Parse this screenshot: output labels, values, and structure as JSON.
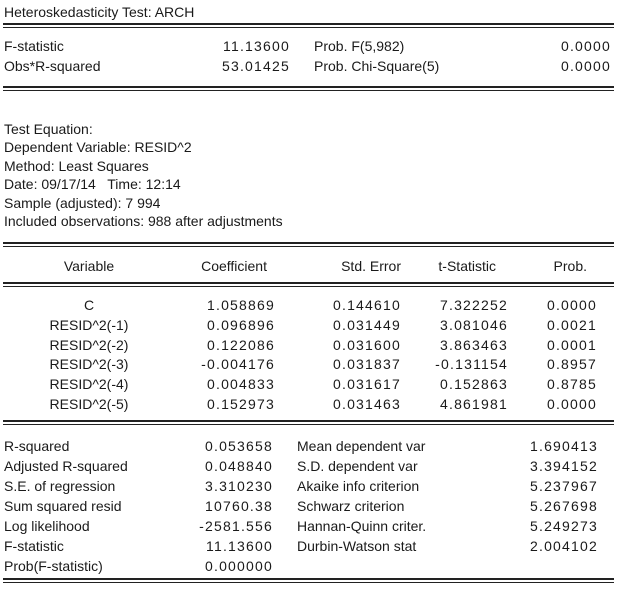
{
  "title": "Heteroskedasticity Test: ARCH",
  "colors": {
    "background": "#ffffff",
    "text": "#1a1a1a",
    "rule": "#222222"
  },
  "top_stats": {
    "rows": [
      {
        "label": "F-statistic",
        "value": "11.13600",
        "prob_label": "Prob. F(5,982)",
        "prob_value": "0.0000"
      },
      {
        "label": "Obs*R-squared",
        "value": "53.01425",
        "prob_label": "Prob. Chi-Square(5)",
        "prob_value": "0.0000"
      }
    ]
  },
  "equation_info": {
    "lines": [
      "Test Equation:",
      "Dependent Variable: RESID^2",
      "Method: Least Squares",
      "Date: 09/17/14   Time: 12:14",
      "Sample (adjusted): 7 994",
      "Included observations: 988 after adjustments"
    ]
  },
  "coefficients_table": {
    "headers": [
      "Variable",
      "Coefficient",
      "Std. Error",
      "t-Statistic",
      "Prob."
    ],
    "rows": [
      [
        "C",
        "1.058869",
        "0.144610",
        "7.322252",
        "0.0000"
      ],
      [
        "RESID^2(-1)",
        "0.096896",
        "0.031449",
        "3.081046",
        "0.0021"
      ],
      [
        "RESID^2(-2)",
        "0.122086",
        "0.031600",
        "3.863463",
        "0.0001"
      ],
      [
        "RESID^2(-3)",
        "-0.004176",
        "0.031837",
        "-0.131154",
        "0.8957"
      ],
      [
        "RESID^2(-4)",
        "0.004833",
        "0.031617",
        "0.152863",
        "0.8785"
      ],
      [
        "RESID^2(-5)",
        "0.152973",
        "0.031463",
        "4.861981",
        "0.0000"
      ]
    ]
  },
  "summary_stats": {
    "rows": [
      {
        "l": "R-squared",
        "lv": "0.053658",
        "r": "Mean dependent var",
        "rv": "1.690413"
      },
      {
        "l": "Adjusted R-squared",
        "lv": "0.048840",
        "r": "S.D. dependent var",
        "rv": "3.394152"
      },
      {
        "l": "S.E. of regression",
        "lv": "3.310230",
        "r": "Akaike info criterion",
        "rv": "5.237967"
      },
      {
        "l": "Sum squared resid",
        "lv": "10760.38",
        "r": "Schwarz criterion",
        "rv": "5.267698"
      },
      {
        "l": "Log likelihood",
        "lv": "-2581.556",
        "r": "Hannan-Quinn criter.",
        "rv": "5.249273"
      },
      {
        "l": "F-statistic",
        "lv": "11.13600",
        "r": "Durbin-Watson stat",
        "rv": "2.004102"
      },
      {
        "l": "Prob(F-statistic)",
        "lv": "0.000000",
        "r": "",
        "rv": ""
      }
    ]
  }
}
